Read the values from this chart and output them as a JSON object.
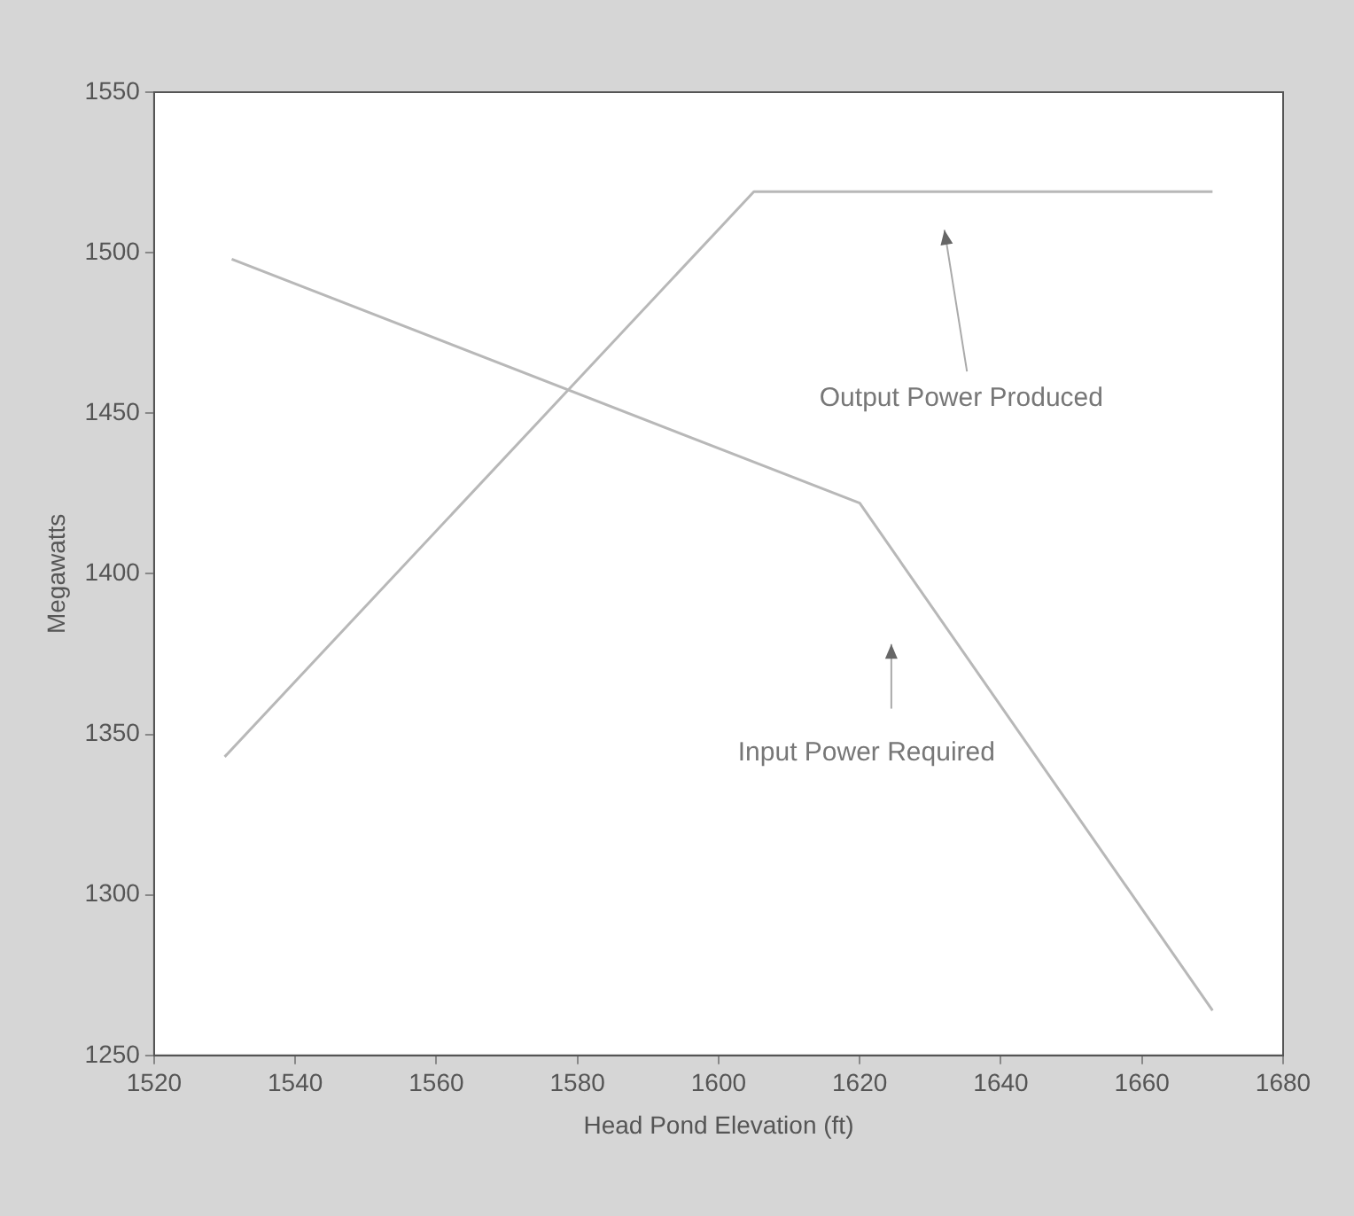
{
  "chart_data": {
    "type": "line",
    "xlabel": "Head Pond Elevation (ft)",
    "ylabel": "Megawatts",
    "xlim": [
      1520,
      1680
    ],
    "xticks": [
      1520,
      1540,
      1560,
      1580,
      1600,
      1620,
      1640,
      1660,
      1680
    ],
    "ylim": [
      1250,
      1550
    ],
    "yticks": [
      1250,
      1300,
      1350,
      1400,
      1450,
      1500,
      1550
    ],
    "grid": false,
    "legend": false,
    "marker": "none",
    "line_style": "solid",
    "series": [
      {
        "color": "#b8b8b8",
        "x": [
          1530,
          1605,
          1670
        ],
        "values": [
          1343,
          1519,
          1519
        ]
      },
      {
        "color": "#b8b8b8",
        "x": [
          1531,
          1620,
          1670
        ],
        "values": [
          1498,
          1422,
          1264
        ]
      }
    ],
    "annotations": [
      "Output Power Produced",
      "Input Power Required"
    ]
  }
}
